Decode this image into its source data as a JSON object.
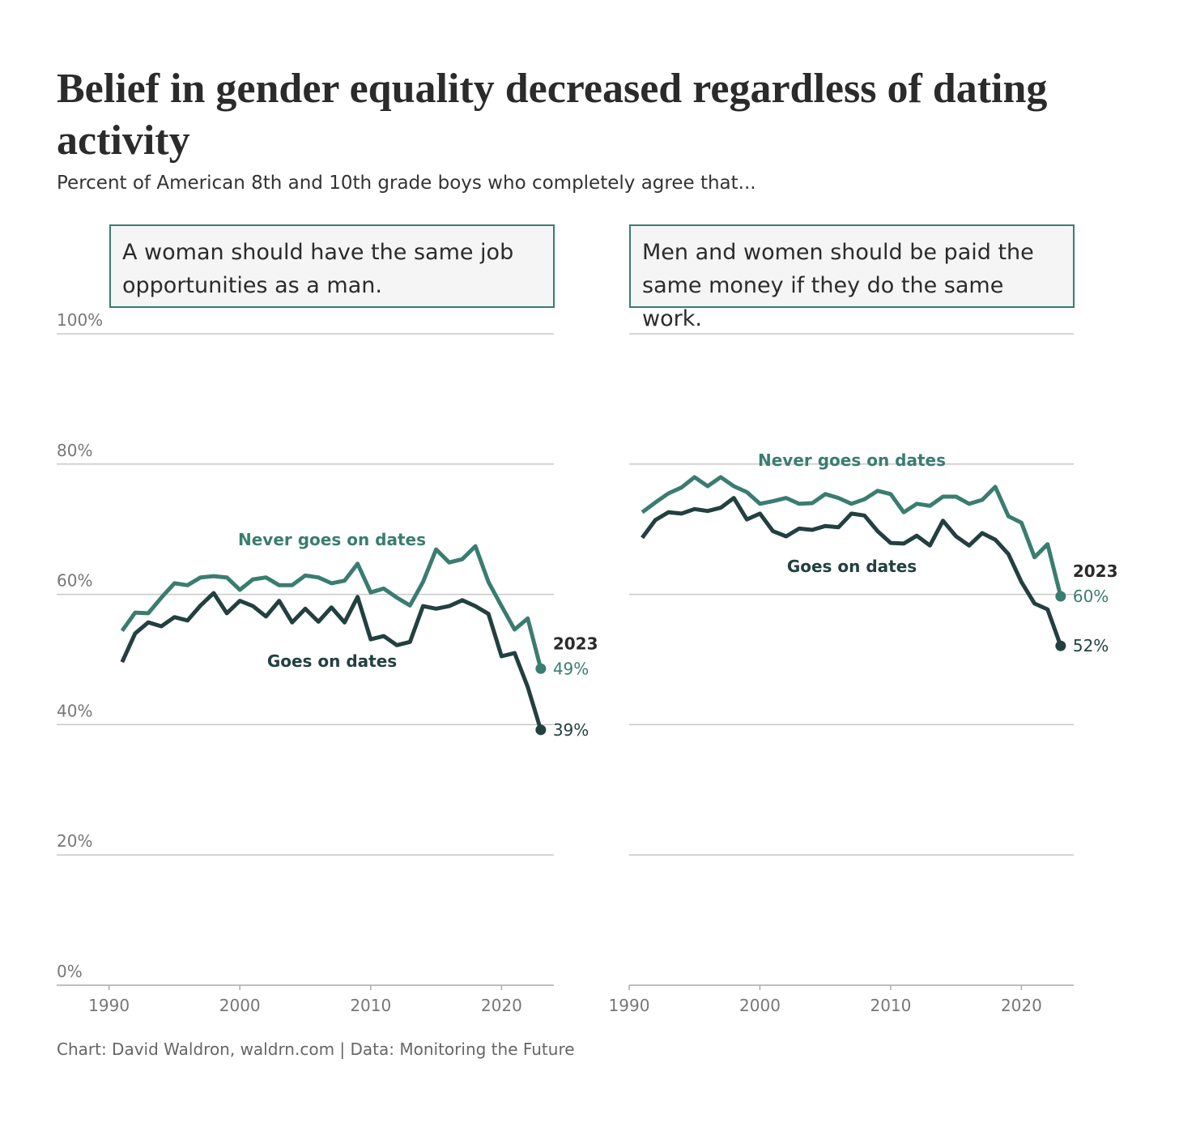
{
  "title": "Belief in gender equality decreased regardless of dating activity",
  "subtitle": "Percent of American 8th and 10th grade boys who completely agree that...",
  "caption": "Chart: David Waldron, waldrn.com | Data: Monitoring the Future",
  "chart_data": [
    {
      "type": "line",
      "title": "A woman should have the same job opportunities as a man.",
      "x": [
        1991,
        1992,
        1993,
        1994,
        1995,
        1996,
        1997,
        1998,
        1999,
        2000,
        2001,
        2002,
        2003,
        2004,
        2005,
        2006,
        2007,
        2008,
        2009,
        2010,
        2011,
        2012,
        2013,
        2014,
        2015,
        2016,
        2017,
        2018,
        2019,
        2020,
        2021,
        2022,
        2023
      ],
      "xlim": [
        1986,
        2024
      ],
      "xticks": [
        1990,
        2000,
        2010,
        2020
      ],
      "ylim": [
        0,
        100
      ],
      "yticks": [
        {
          "value": 0,
          "label": "0%"
        },
        {
          "value": 20,
          "label": "20%"
        },
        {
          "value": 40,
          "label": "40%"
        },
        {
          "value": 60,
          "label": "60%"
        },
        {
          "value": 80,
          "label": "80%"
        },
        {
          "value": 100,
          "label": "100%"
        }
      ],
      "ytick_labels": true,
      "grid": true,
      "annotation": "2023",
      "series": [
        {
          "name": "Never goes on dates",
          "color": "#3a7d70",
          "values": [
            54.4,
            57.2,
            57.1,
            59.5,
            61.7,
            61.4,
            62.6,
            62.8,
            62.6,
            60.7,
            62.3,
            62.6,
            61.4,
            61.4,
            62.9,
            62.6,
            61.7,
            62.1,
            64.7,
            60.3,
            60.9,
            59.5,
            58.3,
            61.9,
            66.9,
            64.9,
            65.4,
            67.4,
            61.9,
            58.2,
            54.6,
            56.3,
            48.6
          ],
          "value_labels": [
            null,
            null,
            null,
            null,
            null,
            null,
            null,
            null,
            null,
            null,
            null,
            null,
            null,
            null,
            null,
            null,
            null,
            null,
            null,
            null,
            null,
            null,
            null,
            null,
            null,
            null,
            null,
            null,
            null,
            null,
            null,
            null,
            "49%"
          ]
        },
        {
          "name": "Goes on dates",
          "color": "#22403f",
          "values": [
            49.6,
            54.0,
            55.7,
            55.1,
            56.5,
            56.0,
            58.3,
            60.2,
            57.1,
            59.0,
            58.2,
            56.6,
            59.0,
            55.7,
            57.8,
            55.8,
            58.0,
            55.7,
            59.6,
            53.1,
            53.6,
            52.2,
            52.7,
            58.2,
            57.8,
            58.2,
            59.1,
            58.2,
            57.0,
            50.5,
            51.0,
            45.8,
            39.2
          ],
          "value_labels": [
            null,
            null,
            null,
            null,
            null,
            null,
            null,
            null,
            null,
            null,
            null,
            null,
            null,
            null,
            null,
            null,
            null,
            null,
            null,
            null,
            null,
            null,
            null,
            null,
            null,
            null,
            null,
            null,
            null,
            null,
            null,
            null,
            "39%"
          ]
        }
      ]
    },
    {
      "type": "line",
      "title": "Men and women should be paid the same money if they do the same work.",
      "x": [
        1991,
        1992,
        1993,
        1994,
        1995,
        1996,
        1997,
        1998,
        1999,
        2000,
        2001,
        2002,
        2003,
        2004,
        2005,
        2006,
        2007,
        2008,
        2009,
        2010,
        2011,
        2012,
        2013,
        2014,
        2015,
        2016,
        2017,
        2018,
        2019,
        2020,
        2021,
        2022,
        2023
      ],
      "xlim": [
        1990,
        2024
      ],
      "xticks": [
        1990,
        2000,
        2010,
        2020
      ],
      "ylim": [
        0,
        100
      ],
      "yticks": [
        0,
        20,
        40,
        60,
        80,
        100
      ],
      "ytick_labels": false,
      "grid": true,
      "annotation": "2023",
      "series": [
        {
          "name": "Never goes on dates",
          "color": "#3a7d70",
          "values": [
            72.6,
            74.1,
            75.5,
            76.4,
            78.0,
            76.6,
            78.0,
            76.6,
            75.7,
            73.9,
            74.3,
            74.8,
            73.9,
            74.0,
            75.4,
            74.8,
            73.9,
            74.6,
            75.9,
            75.4,
            72.6,
            73.9,
            73.6,
            75.0,
            75.0,
            73.9,
            74.5,
            76.5,
            72.0,
            71.0,
            65.7,
            67.7,
            59.7
          ],
          "value_labels": [
            null,
            null,
            null,
            null,
            null,
            null,
            null,
            null,
            null,
            null,
            null,
            null,
            null,
            null,
            null,
            null,
            null,
            null,
            null,
            null,
            null,
            null,
            null,
            null,
            null,
            null,
            null,
            null,
            null,
            null,
            null,
            null,
            "60%"
          ]
        },
        {
          "name": "Goes on dates",
          "color": "#22403f",
          "values": [
            68.7,
            71.4,
            72.6,
            72.4,
            73.1,
            72.8,
            73.3,
            74.8,
            71.5,
            72.4,
            69.7,
            68.9,
            70.1,
            69.9,
            70.5,
            70.3,
            72.4,
            72.1,
            69.7,
            67.9,
            67.8,
            69.0,
            67.5,
            71.3,
            68.9,
            67.5,
            69.4,
            68.4,
            66.2,
            61.9,
            58.6,
            57.7,
            52.1
          ],
          "value_labels": [
            null,
            null,
            null,
            null,
            null,
            null,
            null,
            null,
            null,
            null,
            null,
            null,
            null,
            null,
            null,
            null,
            null,
            null,
            null,
            null,
            null,
            null,
            null,
            null,
            null,
            null,
            null,
            null,
            null,
            null,
            null,
            null,
            "52%"
          ]
        }
      ]
    }
  ]
}
